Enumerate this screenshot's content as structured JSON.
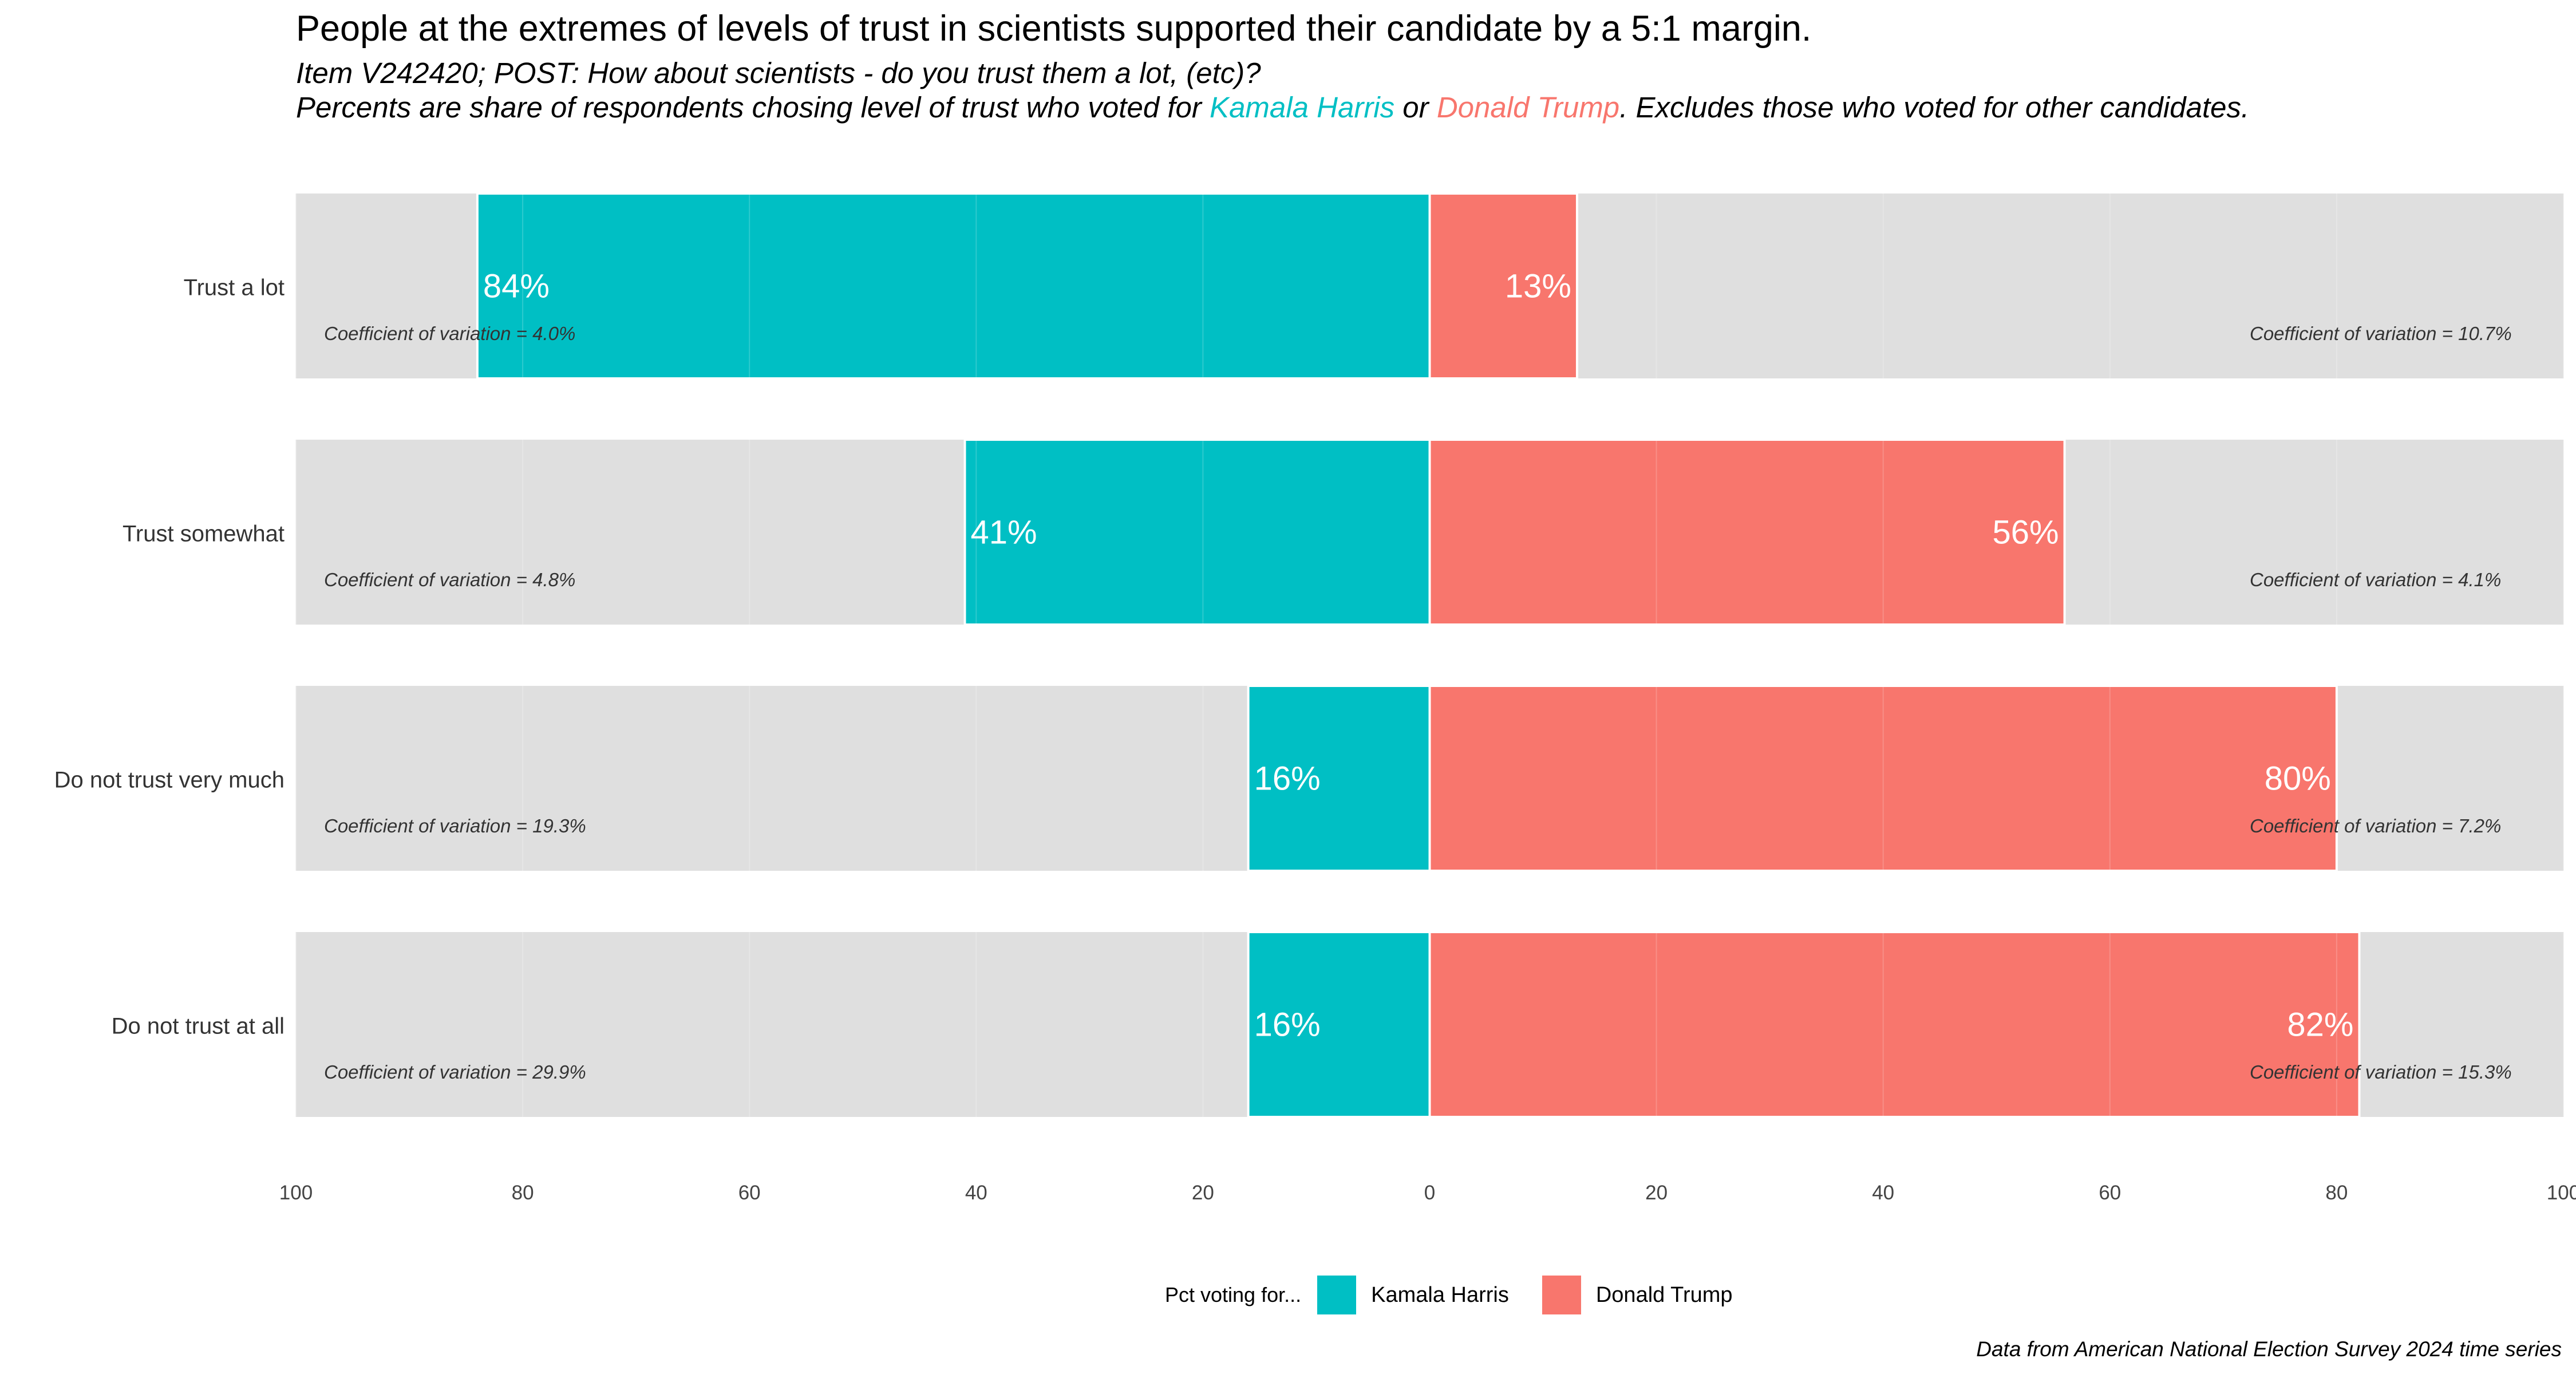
{
  "title": "People at the extremes of levels of trust in scientists supported their candidate by a 5:1 margin.",
  "subtitle_line1": "Item V242420; POST: How about scientists - do you trust them a lot, (etc)?",
  "subtitle_line2_pre": "Percents are share of respondents chosing level of trust who voted for ",
  "subtitle_line2_harris": "Kamala Harris",
  "subtitle_line2_mid": " or ",
  "subtitle_line2_trump": "Donald Trump",
  "subtitle_line2_post": ". Excludes those who voted for other candidates.",
  "legend": {
    "title": "Pct voting for...",
    "items": [
      "Kamala Harris",
      "Donald Trump"
    ]
  },
  "caption": "Data from American National Election Survey 2024 time series",
  "colors": {
    "harris": "#00BFC4",
    "trump": "#F8766D",
    "panel": "#DFDFDF"
  },
  "chart_data": {
    "type": "bar",
    "orientation": "horizontal-diverging",
    "categories": [
      "Trust a lot",
      "Trust somewhat",
      "Do not trust very much",
      "Do not trust at all"
    ],
    "series": [
      {
        "name": "Kamala Harris",
        "values": [
          84,
          41,
          16,
          16
        ],
        "labels": [
          "84%",
          "41%",
          "16%",
          "16%"
        ],
        "side": "left"
      },
      {
        "name": "Donald Trump",
        "values": [
          13,
          56,
          80,
          82
        ],
        "labels": [
          "13%",
          "56%",
          "80%",
          "82%"
        ],
        "side": "right"
      }
    ],
    "cv_harris": [
      "Coefficient of variation = 4.0%",
      "Coefficient of variation = 4.8%",
      "Coefficient of variation = 19.3%",
      "Coefficient of variation = 29.9%"
    ],
    "cv_trump": [
      "Coefficient of variation = 10.7%",
      "Coefficient of variation = 4.1%",
      "Coefficient of variation = 7.2%",
      "Coefficient of variation = 15.3%"
    ],
    "xlim": [
      -100,
      100
    ],
    "x_ticks": [
      -100,
      -80,
      -60,
      -40,
      -20,
      0,
      20,
      40,
      60,
      80,
      100
    ],
    "x_tick_labels": [
      "100",
      "80",
      "60",
      "40",
      "20",
      "0",
      "20",
      "40",
      "60",
      "80",
      "100"
    ],
    "grid": true,
    "legend_position": "bottom"
  }
}
